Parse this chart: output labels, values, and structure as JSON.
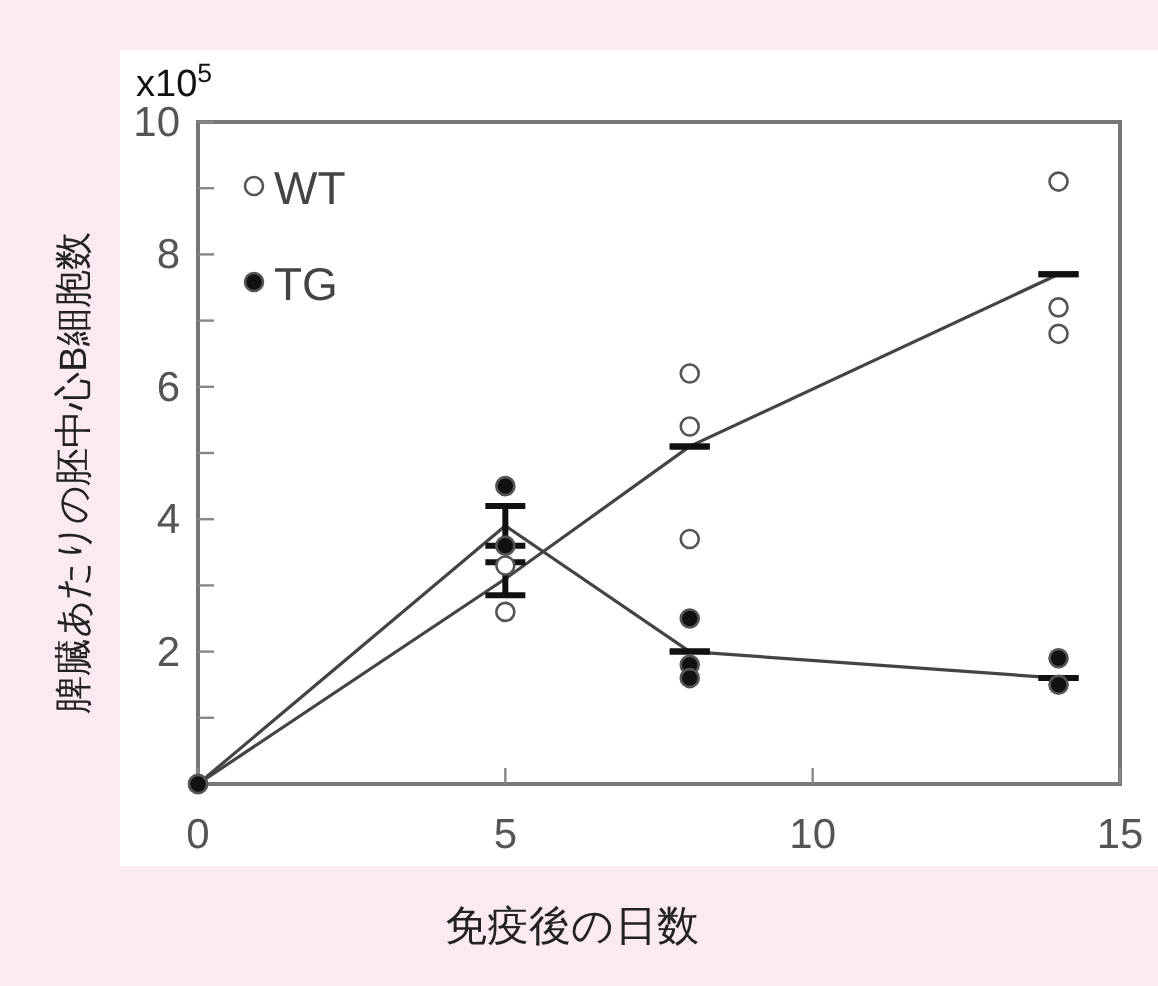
{
  "chart_data": {
    "type": "scatter",
    "xlabel": "免疫後の日数",
    "ylabel": "脾臓あたりの胚中心B細胞数",
    "annotations": [
      "x10$^{5}$"
    ],
    "xlim": [
      0,
      15
    ],
    "xticks": [
      0,
      5,
      10,
      15
    ],
    "ylim": [
      0,
      10
    ],
    "yticks": [
      {
        "value": 1,
        "label": null
      },
      2,
      {
        "value": 3,
        "label": null
      },
      4,
      {
        "value": 5,
        "label": null
      },
      6,
      {
        "value": 7,
        "label": null
      },
      8,
      {
        "value": 9,
        "label": null
      },
      10
    ],
    "grid": false,
    "legend": "top left",
    "series": [
      {
        "name": "WT",
        "type": "scatter",
        "marker": "circle",
        "color": "#ffffff",
        "x": [
          0,
          5,
          5,
          8,
          8,
          8,
          14,
          14,
          14
        ],
        "values": [
          0,
          2.6,
          3.3,
          6.2,
          5.4,
          3.7,
          9.1,
          7.2,
          6.8
        ]
      },
      {
        "name": "TG",
        "type": "scatter",
        "marker": "circle",
        "color": "#111111",
        "x": [
          0,
          5,
          5,
          8,
          8,
          8,
          14,
          14
        ],
        "values": [
          0,
          4.5,
          3.6,
          2.5,
          1.8,
          1.6,
          1.9,
          1.5
        ]
      },
      {
        "type": "line",
        "marker": "none",
        "color": "#444444",
        "x": [
          0,
          5,
          8,
          14
        ],
        "values": [
          0,
          3.1,
          5.1,
          7.7
        ],
        "errors": [
          null,
          0.25,
          0,
          0
        ]
      },
      {
        "type": "line",
        "marker": "none",
        "color": "#444444",
        "x": [
          0,
          5,
          8,
          14
        ],
        "values": [
          0,
          3.9,
          2.0,
          1.6
        ],
        "errors": [
          null,
          0.3,
          0,
          0
        ]
      }
    ]
  }
}
